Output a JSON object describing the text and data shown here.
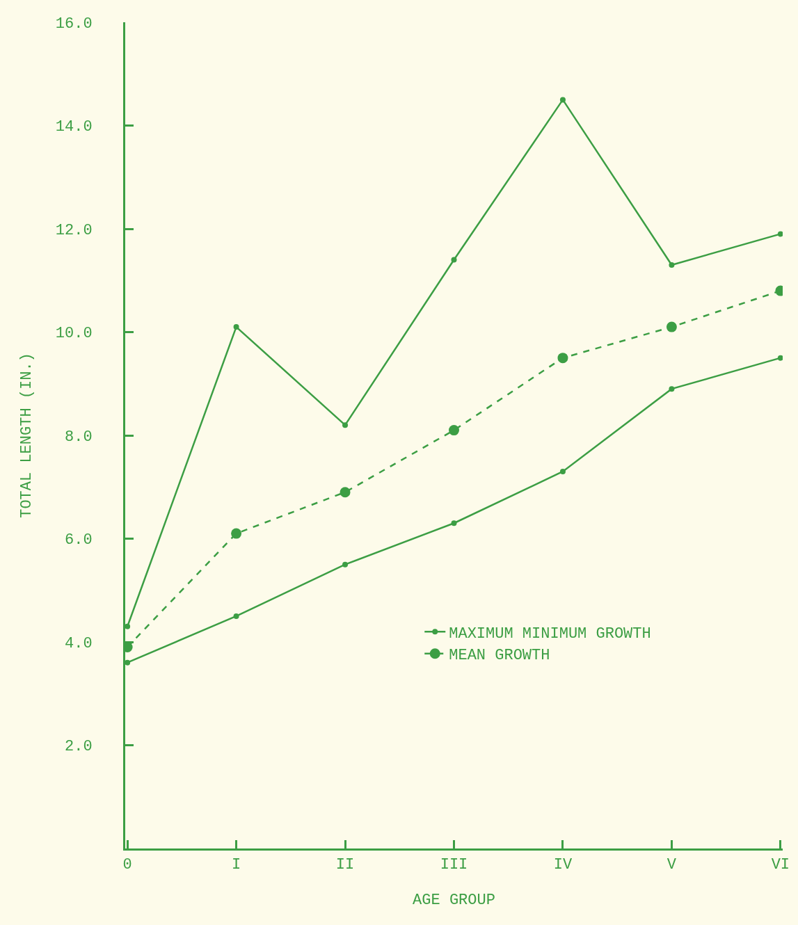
{
  "chart_data": {
    "type": "line",
    "xlabel": "AGE GROUP",
    "ylabel": "TOTAL LENGTH (IN.)",
    "categories": [
      "0",
      "I",
      "II",
      "III",
      "IV",
      "V",
      "VI"
    ],
    "series": [
      {
        "name": "MAXIMUM MINIMUM GROWTH",
        "color": "#3c9e44",
        "line_style": "solid",
        "values": [
          4.3,
          10.1,
          8.2,
          11.4,
          14.5,
          11.3,
          11.9
        ]
      },
      {
        "name": "MEAN GROWTH",
        "color": "#3c9e44",
        "line_style": "dashed",
        "values": [
          3.9,
          6.1,
          6.9,
          8.1,
          9.5,
          10.1,
          10.8
        ]
      },
      {
        "color": "#3c9e44",
        "line_style": "solid",
        "values": [
          3.6,
          4.5,
          5.5,
          6.3,
          7.3,
          8.9,
          9.5
        ]
      }
    ],
    "ylim": [
      0,
      16
    ],
    "yticks": [
      {
        "value": 2,
        "label": "2.0"
      },
      {
        "value": 4,
        "label": "4.0"
      },
      {
        "value": 6,
        "label": "6.0"
      },
      {
        "value": 8,
        "label": "8.0"
      },
      {
        "value": 10,
        "label": "10.0"
      },
      {
        "value": 12,
        "label": "12.0"
      },
      {
        "value": 14,
        "label": "14.0"
      },
      {
        "value": 16,
        "label": "16.0"
      }
    ],
    "grid": false,
    "legend": "bottom right",
    "marker": "circle"
  }
}
